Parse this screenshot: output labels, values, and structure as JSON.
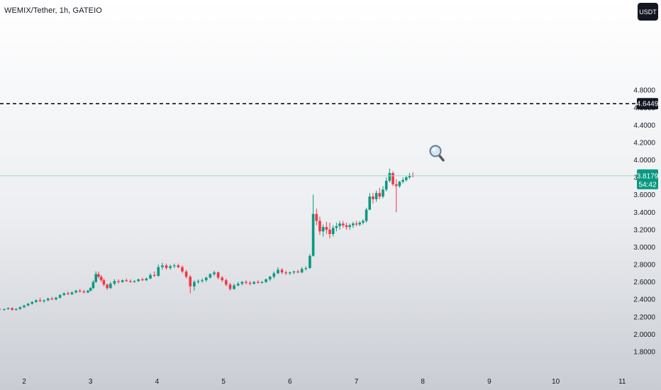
{
  "header": {
    "title": "WEMIX/Tether, 1h, GATEIO",
    "currency_button": "USDT"
  },
  "colors": {
    "up": "#089981",
    "down": "#f23645",
    "price_line": "#9fd3cc",
    "dashed_line": "#000000",
    "label_dark": "#131722"
  },
  "price_label": {
    "value": "3.8179",
    "countdown": "54:42"
  },
  "dashed_label": {
    "value": "4.6449"
  },
  "icon": {
    "name": "magnifier-icon"
  },
  "chart_data": {
    "type": "candlestick",
    "title": "WEMIX/Tether, 1h, GATEIO",
    "ylim": [
      1.7,
      5.0
    ],
    "yticks": [
      "4.8000",
      "4.6000",
      "4.4000",
      "4.2000",
      "4.0000",
      "3.8000",
      "3.6000",
      "3.4000",
      "3.2000",
      "3.0000",
      "2.8000",
      "2.6000",
      "2.4000",
      "2.2000",
      "2.0000",
      "1.8000"
    ],
    "xticks": [
      {
        "label": "2",
        "day": 2
      },
      {
        "label": "3",
        "day": 3
      },
      {
        "label": "4",
        "day": 4
      },
      {
        "label": "5",
        "day": 5
      },
      {
        "label": "6",
        "day": 6
      },
      {
        "label": "7",
        "day": 7
      },
      {
        "label": "8",
        "day": 8
      },
      {
        "label": "9",
        "day": 9
      },
      {
        "label": "10",
        "day": 10
      },
      {
        "label": "11",
        "day": 11
      }
    ],
    "last_price": 3.8179,
    "horizontal_line": 4.6449,
    "candles": [
      [
        1.63,
        2.29,
        2.3,
        2.27,
        2.28
      ],
      [
        1.7,
        2.28,
        2.29,
        2.27,
        2.29
      ],
      [
        1.76,
        2.29,
        2.31,
        2.28,
        2.3
      ],
      [
        1.82,
        2.3,
        2.31,
        2.27,
        2.28
      ],
      [
        1.88,
        2.28,
        2.3,
        2.27,
        2.29
      ],
      [
        1.94,
        2.29,
        2.32,
        2.28,
        2.31
      ],
      [
        2.0,
        2.31,
        2.34,
        2.3,
        2.33
      ],
      [
        2.06,
        2.33,
        2.36,
        2.32,
        2.35
      ],
      [
        2.12,
        2.35,
        2.38,
        2.34,
        2.37
      ],
      [
        2.18,
        2.37,
        2.4,
        2.36,
        2.39
      ],
      [
        2.24,
        2.39,
        2.42,
        2.37,
        2.38
      ],
      [
        2.3,
        2.38,
        2.4,
        2.36,
        2.39
      ],
      [
        2.36,
        2.39,
        2.42,
        2.38,
        2.41
      ],
      [
        2.42,
        2.41,
        2.43,
        2.39,
        2.4
      ],
      [
        2.48,
        2.4,
        2.43,
        2.39,
        2.42
      ],
      [
        2.54,
        2.42,
        2.46,
        2.41,
        2.45
      ],
      [
        2.6,
        2.45,
        2.48,
        2.44,
        2.47
      ],
      [
        2.66,
        2.47,
        2.49,
        2.45,
        2.46
      ],
      [
        2.72,
        2.46,
        2.49,
        2.45,
        2.48
      ],
      [
        2.78,
        2.48,
        2.51,
        2.47,
        2.5
      ],
      [
        2.84,
        2.5,
        2.52,
        2.48,
        2.49
      ],
      [
        2.9,
        2.49,
        2.51,
        2.47,
        2.48
      ],
      [
        2.96,
        2.48,
        2.51,
        2.47,
        2.5
      ],
      [
        3.0,
        2.5,
        2.54,
        2.49,
        2.53
      ],
      [
        3.04,
        2.53,
        2.62,
        2.52,
        2.6
      ],
      [
        3.08,
        2.6,
        2.72,
        2.59,
        2.69
      ],
      [
        3.12,
        2.69,
        2.72,
        2.64,
        2.66
      ],
      [
        3.16,
        2.66,
        2.68,
        2.6,
        2.62
      ],
      [
        3.2,
        2.62,
        2.64,
        2.55,
        2.57
      ],
      [
        3.25,
        2.57,
        2.58,
        2.51,
        2.53
      ],
      [
        3.3,
        2.53,
        2.6,
        2.52,
        2.58
      ],
      [
        3.36,
        2.58,
        2.63,
        2.56,
        2.61
      ],
      [
        3.42,
        2.61,
        2.63,
        2.58,
        2.6
      ],
      [
        3.48,
        2.6,
        2.63,
        2.59,
        2.62
      ],
      [
        3.54,
        2.62,
        2.64,
        2.6,
        2.61
      ],
      [
        3.6,
        2.61,
        2.63,
        2.59,
        2.6
      ],
      [
        3.66,
        2.6,
        2.62,
        2.59,
        2.61
      ],
      [
        3.72,
        2.61,
        2.64,
        2.6,
        2.63
      ],
      [
        3.78,
        2.63,
        2.65,
        2.61,
        2.62
      ],
      [
        3.84,
        2.62,
        2.65,
        2.61,
        2.64
      ],
      [
        3.9,
        2.64,
        2.7,
        2.63,
        2.68
      ],
      [
        3.96,
        2.68,
        2.72,
        2.66,
        2.67
      ],
      [
        4.02,
        2.67,
        2.8,
        2.66,
        2.77
      ],
      [
        4.08,
        2.77,
        2.82,
        2.74,
        2.79
      ],
      [
        4.14,
        2.79,
        2.81,
        2.74,
        2.76
      ],
      [
        4.2,
        2.76,
        2.8,
        2.74,
        2.78
      ],
      [
        4.26,
        2.78,
        2.81,
        2.76,
        2.79
      ],
      [
        4.32,
        2.79,
        2.81,
        2.76,
        2.77
      ],
      [
        4.38,
        2.77,
        2.79,
        2.7,
        2.72
      ],
      [
        4.44,
        2.72,
        2.74,
        2.64,
        2.66
      ],
      [
        4.5,
        2.66,
        2.68,
        2.47,
        2.55
      ],
      [
        4.56,
        2.55,
        2.62,
        2.5,
        2.6
      ],
      [
        4.62,
        2.6,
        2.63,
        2.58,
        2.61
      ],
      [
        4.68,
        2.61,
        2.64,
        2.59,
        2.62
      ],
      [
        4.74,
        2.62,
        2.66,
        2.6,
        2.65
      ],
      [
        4.8,
        2.65,
        2.7,
        2.64,
        2.69
      ],
      [
        4.86,
        2.69,
        2.73,
        2.67,
        2.71
      ],
      [
        4.92,
        2.71,
        2.72,
        2.63,
        2.65
      ],
      [
        4.98,
        2.65,
        2.67,
        2.6,
        2.62
      ],
      [
        5.04,
        2.62,
        2.64,
        2.55,
        2.57
      ],
      [
        5.1,
        2.57,
        2.59,
        2.5,
        2.52
      ],
      [
        5.16,
        2.52,
        2.58,
        2.51,
        2.56
      ],
      [
        5.22,
        2.56,
        2.6,
        2.55,
        2.58
      ],
      [
        5.28,
        2.58,
        2.61,
        2.56,
        2.6
      ],
      [
        5.34,
        2.6,
        2.62,
        2.57,
        2.59
      ],
      [
        5.4,
        2.59,
        2.61,
        2.56,
        2.58
      ],
      [
        5.46,
        2.58,
        2.61,
        2.57,
        2.6
      ],
      [
        5.52,
        2.6,
        2.62,
        2.58,
        2.59
      ],
      [
        5.58,
        2.59,
        2.61,
        2.58,
        2.6
      ],
      [
        5.64,
        2.6,
        2.64,
        2.59,
        2.63
      ],
      [
        5.7,
        2.63,
        2.67,
        2.61,
        2.66
      ],
      [
        5.76,
        2.66,
        2.72,
        2.64,
        2.7
      ],
      [
        5.82,
        2.7,
        2.77,
        2.69,
        2.74
      ],
      [
        5.88,
        2.74,
        2.76,
        2.69,
        2.71
      ],
      [
        5.94,
        2.71,
        2.73,
        2.68,
        2.7
      ],
      [
        6.0,
        2.7,
        2.72,
        2.68,
        2.71
      ],
      [
        6.06,
        2.71,
        2.73,
        2.69,
        2.72
      ],
      [
        6.12,
        2.72,
        2.74,
        2.7,
        2.71
      ],
      [
        6.18,
        2.71,
        2.77,
        2.7,
        2.75
      ],
      [
        6.24,
        2.75,
        2.78,
        2.73,
        2.76
      ],
      [
        6.3,
        2.76,
        2.92,
        2.75,
        2.9
      ],
      [
        6.35,
        2.9,
        3.6,
        2.89,
        3.38
      ],
      [
        6.4,
        3.38,
        3.44,
        3.25,
        3.3
      ],
      [
        6.45,
        3.3,
        3.35,
        3.14,
        3.18
      ],
      [
        6.5,
        3.18,
        3.26,
        3.12,
        3.23
      ],
      [
        6.55,
        3.23,
        3.29,
        3.15,
        3.2
      ],
      [
        6.6,
        3.2,
        3.28,
        3.1,
        3.15
      ],
      [
        6.65,
        3.15,
        3.25,
        3.12,
        3.22
      ],
      [
        6.7,
        3.22,
        3.28,
        3.18,
        3.24
      ],
      [
        6.75,
        3.24,
        3.3,
        3.2,
        3.27
      ],
      [
        6.8,
        3.27,
        3.3,
        3.22,
        3.25
      ],
      [
        6.85,
        3.25,
        3.28,
        3.2,
        3.23
      ],
      [
        6.9,
        3.23,
        3.27,
        3.2,
        3.25
      ],
      [
        6.95,
        3.25,
        3.29,
        3.22,
        3.27
      ],
      [
        7.0,
        3.27,
        3.3,
        3.24,
        3.26
      ],
      [
        7.05,
        3.26,
        3.3,
        3.24,
        3.28
      ],
      [
        7.1,
        3.28,
        3.32,
        3.26,
        3.3
      ],
      [
        7.15,
        3.3,
        3.45,
        3.28,
        3.43
      ],
      [
        7.2,
        3.43,
        3.62,
        3.42,
        3.58
      ],
      [
        7.25,
        3.58,
        3.62,
        3.5,
        3.55
      ],
      [
        7.3,
        3.55,
        3.65,
        3.52,
        3.62
      ],
      [
        7.35,
        3.62,
        3.68,
        3.55,
        3.58
      ],
      [
        7.4,
        3.58,
        3.7,
        3.56,
        3.66
      ],
      [
        7.45,
        3.66,
        3.8,
        3.64,
        3.76
      ],
      [
        7.5,
        3.76,
        3.9,
        3.74,
        3.85
      ],
      [
        7.55,
        3.85,
        3.87,
        3.7,
        3.72
      ],
      [
        7.6,
        3.72,
        3.78,
        3.4,
        3.7
      ],
      [
        7.65,
        3.7,
        3.76,
        3.68,
        3.75
      ],
      [
        7.7,
        3.75,
        3.8,
        3.73,
        3.77
      ],
      [
        7.75,
        3.77,
        3.82,
        3.75,
        3.8
      ],
      [
        7.8,
        3.8,
        3.85,
        3.78,
        3.82
      ],
      [
        7.85,
        3.82,
        3.86,
        3.8,
        3.8179
      ]
    ]
  }
}
